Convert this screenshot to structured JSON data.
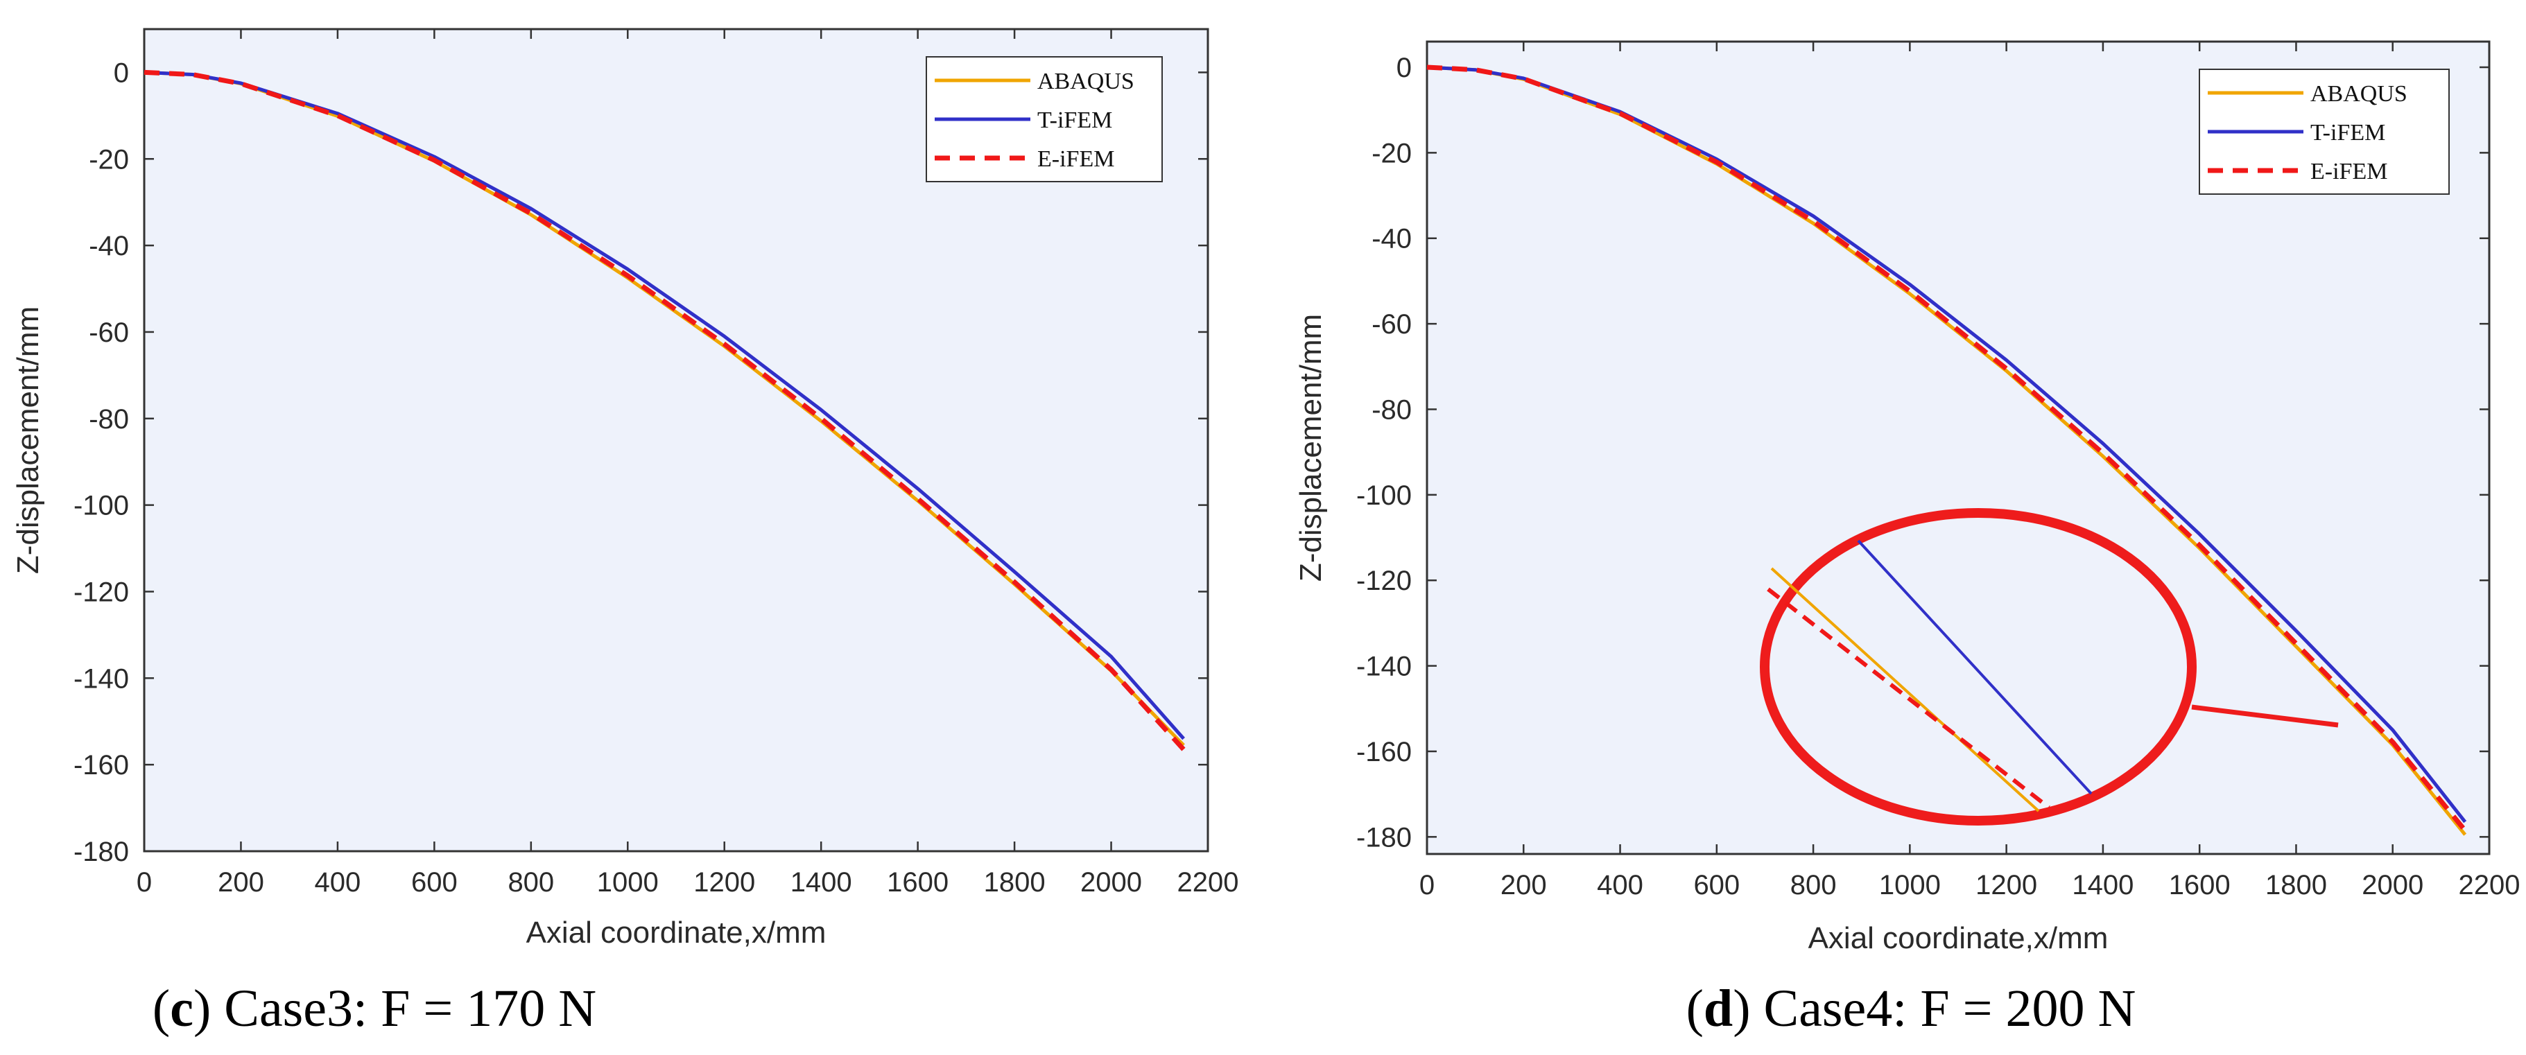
{
  "chart_data": [
    {
      "type": "line",
      "caption": {
        "letter": "c",
        "text": ") Case3: F = 170 N",
        "open": "("
      },
      "xlabel": "Axial coordinate,x/mm",
      "ylabel": "Z-displacement/mm",
      "xlim": [
        0,
        2200
      ],
      "ylim": [
        -180,
        10
      ],
      "xticks": [
        0,
        200,
        400,
        600,
        800,
        1000,
        1200,
        1400,
        1600,
        1800,
        2000,
        2200
      ],
      "yticks": [
        0,
        -20,
        -40,
        -60,
        -80,
        -100,
        -120,
        -140,
        -160,
        -180
      ],
      "grid": false,
      "legend_position": "top-right",
      "series": [
        {
          "name": "ABAQUS",
          "color": "#f0a500",
          "dash": "solid",
          "x": [
            0,
            100,
            200,
            400,
            600,
            800,
            1000,
            1200,
            1400,
            1600,
            1800,
            2000,
            2150
          ],
          "y": [
            0,
            -0.5,
            -2.6,
            -10.1,
            -20.5,
            -32.9,
            -47.5,
            -63.3,
            -80.6,
            -99.0,
            -118.3,
            -138.3,
            -155.5
          ]
        },
        {
          "name": "T-iFEM",
          "color": "#3030c8",
          "dash": "solid",
          "x": [
            0,
            100,
            200,
            400,
            600,
            800,
            1000,
            1200,
            1400,
            1600,
            1800,
            2000,
            2150
          ],
          "y": [
            0,
            -0.5,
            -2.5,
            -9.5,
            -19.5,
            -31.5,
            -45.5,
            -61.0,
            -78.0,
            -96.2,
            -115.4,
            -135.0,
            -154.0
          ]
        },
        {
          "name": "E-iFEM",
          "color": "#f01818",
          "dash": "dashed",
          "x": [
            0,
            100,
            200,
            400,
            600,
            800,
            1000,
            1200,
            1400,
            1600,
            1800,
            2000,
            2150
          ],
          "y": [
            0,
            -0.5,
            -2.6,
            -10.0,
            -20.3,
            -32.6,
            -47.0,
            -62.8,
            -80.0,
            -98.5,
            -117.8,
            -138.0,
            -156.5
          ]
        }
      ]
    },
    {
      "type": "line",
      "caption": {
        "letter": "d",
        "text": ") Case4: F = 200 N",
        "open": "("
      },
      "xlabel": "Axial coordinate,x/mm",
      "ylabel": "Z-displacement/mm",
      "xlim": [
        0,
        2200
      ],
      "ylim": [
        -184,
        6
      ],
      "xticks": [
        0,
        200,
        400,
        600,
        800,
        1000,
        1200,
        1400,
        1600,
        1800,
        2000,
        2200
      ],
      "yticks": [
        0,
        -20,
        -40,
        -60,
        -80,
        -100,
        -120,
        -140,
        -160,
        -180
      ],
      "grid": false,
      "legend_position": "top-right",
      "zoom_inset": true,
      "series": [
        {
          "name": "ABAQUS",
          "color": "#f0a500",
          "dash": "solid",
          "x": [
            0,
            100,
            200,
            400,
            600,
            800,
            1000,
            1200,
            1400,
            1600,
            1800,
            2000,
            2150
          ],
          "y": [
            0,
            -0.6,
            -2.8,
            -11.0,
            -22.6,
            -36.5,
            -53.0,
            -71.0,
            -91.0,
            -112.5,
            -135.5,
            -158.5,
            -179.5
          ]
        },
        {
          "name": "T-iFEM",
          "color": "#3030c8",
          "dash": "solid",
          "x": [
            0,
            100,
            200,
            400,
            600,
            800,
            1000,
            1200,
            1400,
            1600,
            1800,
            2000,
            2150
          ],
          "y": [
            0,
            -0.6,
            -2.6,
            -10.4,
            -21.5,
            -34.8,
            -50.8,
            -68.5,
            -88.0,
            -109.2,
            -131.8,
            -155.0,
            -176.5
          ]
        },
        {
          "name": "E-iFEM",
          "color": "#f01818",
          "dash": "dashed",
          "x": [
            0,
            100,
            200,
            400,
            600,
            800,
            1000,
            1200,
            1400,
            1600,
            1800,
            2000,
            2150
          ],
          "y": [
            0,
            -0.6,
            -2.7,
            -10.8,
            -22.2,
            -36.0,
            -52.4,
            -70.5,
            -90.3,
            -111.8,
            -134.8,
            -157.8,
            -178.5
          ]
        }
      ]
    }
  ]
}
